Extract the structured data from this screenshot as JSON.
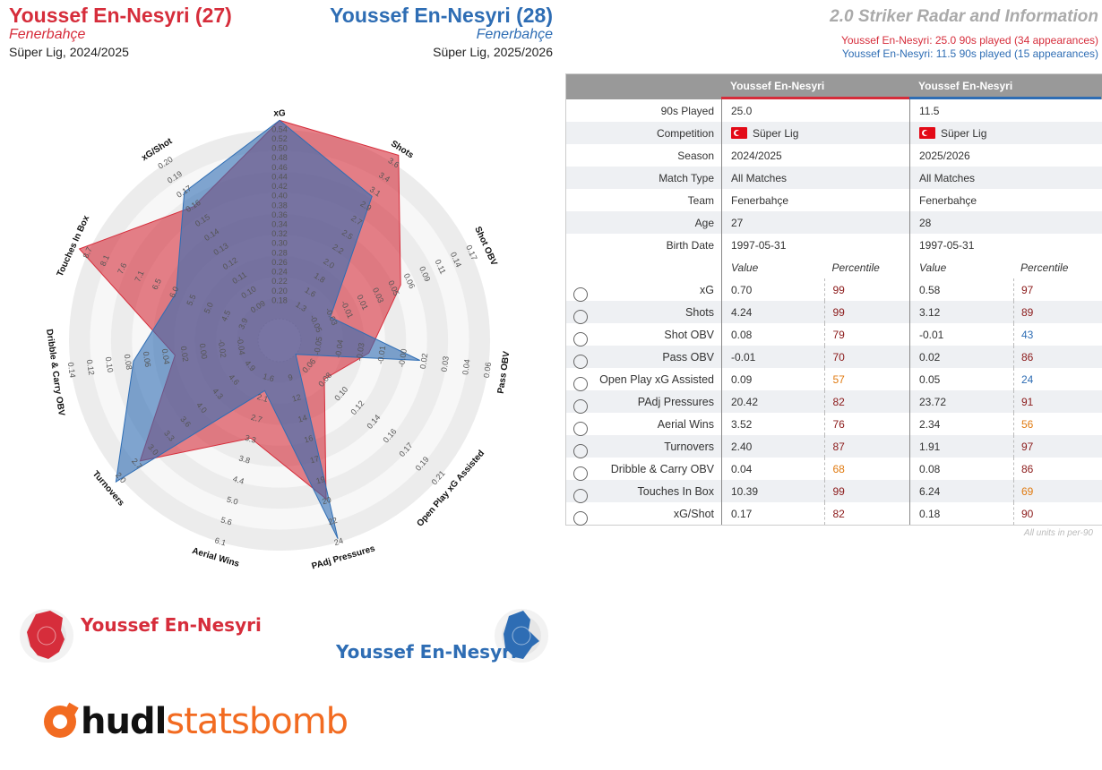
{
  "header": {
    "player1": {
      "name": "Youssef En-Nesyri (27)",
      "team": "Fenerbahçe",
      "competition": "Süper Lig, 2024/2025"
    },
    "player2": {
      "name": "Youssef En-Nesyri (28)",
      "team": "Fenerbahçe",
      "competition": "Süper Lig, 2025/2026"
    },
    "title": "2.0 Striker Radar and Information",
    "sub1": "Youssef En-Nesyri: 25.0 90s played (34 appearances)",
    "sub2": "Youssef En-Nesyri: 11.5 90s played (15 appearances)"
  },
  "legend": {
    "p1": "Youssef En-Nesyri",
    "p2": "Youssef En-Nesyri"
  },
  "logo": {
    "hudl": "hudl",
    "statsbomb": "statsbomb"
  },
  "colors": {
    "p1": "#d62d3b",
    "p2": "#2e6db4",
    "pct_high": "#8b1a1a",
    "pct_mid": "#e07a10",
    "pct_low": "#2e6db4"
  },
  "table": {
    "col_p1": "Youssef En-Nesyri",
    "col_p2": "Youssef En-Nesyri",
    "info": [
      {
        "label": "90s Played",
        "p1": "25.0",
        "p2": "11.5"
      },
      {
        "label": "Competition",
        "p1": "Süper Lig",
        "p2": "Süper Lig",
        "flag": true
      },
      {
        "label": "Season",
        "p1": "2024/2025",
        "p2": "2025/2026"
      },
      {
        "label": "Match Type",
        "p1": "All Matches",
        "p2": "All Matches"
      },
      {
        "label": "Team",
        "p1": "Fenerbahçe",
        "p2": "Fenerbahçe"
      },
      {
        "label": "Age",
        "p1": "27",
        "p2": "28"
      },
      {
        "label": "Birth Date",
        "p1": "1997-05-31",
        "p2": "1997-05-31"
      }
    ],
    "value_hdr": "Value",
    "pct_hdr": "Percentile",
    "metrics": [
      {
        "label": "xG",
        "v1": "0.70",
        "p1": "99",
        "v2": "0.58",
        "p2": "97"
      },
      {
        "label": "Shots",
        "v1": "4.24",
        "p1": "99",
        "v2": "3.12",
        "p2": "89"
      },
      {
        "label": "Shot OBV",
        "v1": "0.08",
        "p1": "79",
        "v2": "-0.01",
        "p2": "43"
      },
      {
        "label": "Pass OBV",
        "v1": "-0.01",
        "p1": "70",
        "v2": "0.02",
        "p2": "86"
      },
      {
        "label": "Open Play xG Assisted",
        "v1": "0.09",
        "p1": "57",
        "v2": "0.05",
        "p2": "24"
      },
      {
        "label": "PAdj Pressures",
        "v1": "20.42",
        "p1": "82",
        "v2": "23.72",
        "p2": "91"
      },
      {
        "label": "Aerial Wins",
        "v1": "3.52",
        "p1": "76",
        "v2": "2.34",
        "p2": "56"
      },
      {
        "label": "Turnovers",
        "v1": "2.40",
        "p1": "87",
        "v2": "1.91",
        "p2": "97"
      },
      {
        "label": "Dribble & Carry OBV",
        "v1": "0.04",
        "p1": "68",
        "v2": "0.08",
        "p2": "86"
      },
      {
        "label": "Touches In Box",
        "v1": "10.39",
        "p1": "99",
        "v2": "6.24",
        "p2": "69"
      },
      {
        "label": "xG/Shot",
        "v1": "0.17",
        "p1": "82",
        "v2": "0.18",
        "p2": "90"
      }
    ],
    "footnote": "All units in per-90"
  },
  "chart_data": {
    "type": "radar",
    "axes": [
      {
        "label": "xG",
        "ticks": [
          "0.18",
          "0.20",
          "0.22",
          "0.24",
          "0.26",
          "0.28",
          "0.30",
          "0.32",
          "0.34",
          "0.36",
          "0.38",
          "0.40",
          "0.42",
          "0.44",
          "0.46",
          "0.48",
          "0.50",
          "0.52",
          "0.54"
        ]
      },
      {
        "label": "Shots",
        "ticks": [
          "1.3",
          "1.6",
          "1.8",
          "2.0",
          "2.2",
          "2.5",
          "2.7",
          "2.9",
          "3.1",
          "3.4",
          "3.6"
        ]
      },
      {
        "label": "Shot OBV",
        "ticks": [
          "-0.05",
          "-0.03",
          "-0.01",
          "0.01",
          "0.03",
          "0.05",
          "0.06",
          "0.09",
          "0.11",
          "0.14",
          "0.17"
        ]
      },
      {
        "label": "Pass OBV",
        "ticks": [
          "-0.05",
          "-0.04",
          "-0.03",
          "-0.01",
          "-0.00",
          "0.02",
          "0.03",
          "0.04",
          "0.06"
        ]
      },
      {
        "label": "Open Play xG Assisted",
        "ticks": [
          "0.06",
          "0.08",
          "0.10",
          "0.12",
          "0.14",
          "0.16",
          "0.17",
          "0.19",
          "0.21"
        ]
      },
      {
        "label": "PAdj Pressures",
        "ticks": [
          "9",
          "12",
          "14",
          "16",
          "17",
          "19",
          "20",
          "22",
          "24"
        ]
      },
      {
        "label": "Aerial Wins",
        "ticks": [
          "1.6",
          "2.1",
          "2.7",
          "3.3",
          "3.8",
          "4.4",
          "5.0",
          "5.6",
          "6.1"
        ]
      },
      {
        "label": "Turnovers",
        "ticks": [
          "4.9",
          "4.6",
          "4.3",
          "4.0",
          "3.6",
          "3.3",
          "3.0",
          "2.7",
          "2.0"
        ]
      },
      {
        "label": "Dribble & Carry OBV",
        "ticks": [
          "-0.04",
          "-0.02",
          "0.00",
          "0.02",
          "0.04",
          "0.06",
          "0.08",
          "0.10",
          "0.12",
          "0.14"
        ]
      },
      {
        "label": "Touches In Box",
        "ticks": [
          "3.9",
          "4.5",
          "5.0",
          "5.5",
          "6.0",
          "6.5",
          "7.1",
          "7.6",
          "8.1",
          "8.7"
        ]
      },
      {
        "label": "xG/Shot",
        "ticks": [
          "0.09",
          "0.10",
          "0.11",
          "0.12",
          "0.13",
          "0.14",
          "0.15",
          "0.16",
          "0.17",
          "0.19",
          "0.20"
        ]
      }
    ],
    "series": [
      {
        "name": "Youssef En-Nesyri",
        "values": [
          0.7,
          4.24,
          0.08,
          -0.01,
          0.09,
          20.42,
          3.52,
          2.4,
          0.04,
          10.39,
          0.17
        ]
      },
      {
        "name": "Youssef En-Nesyri",
        "values": [
          0.58,
          3.12,
          -0.01,
          0.02,
          0.05,
          23.72,
          2.34,
          1.91,
          0.08,
          6.24,
          0.18
        ]
      }
    ],
    "ranges": [
      [
        0.18,
        0.54
      ],
      [
        1.3,
        3.6
      ],
      [
        -0.05,
        0.17
      ],
      [
        -0.05,
        0.06
      ],
      [
        0.06,
        0.21
      ],
      [
        9,
        24
      ],
      [
        1.6,
        6.1
      ],
      [
        4.9,
        2.0
      ],
      [
        -0.04,
        0.14
      ],
      [
        3.9,
        8.7
      ],
      [
        0.09,
        0.2
      ]
    ],
    "grid": true
  }
}
